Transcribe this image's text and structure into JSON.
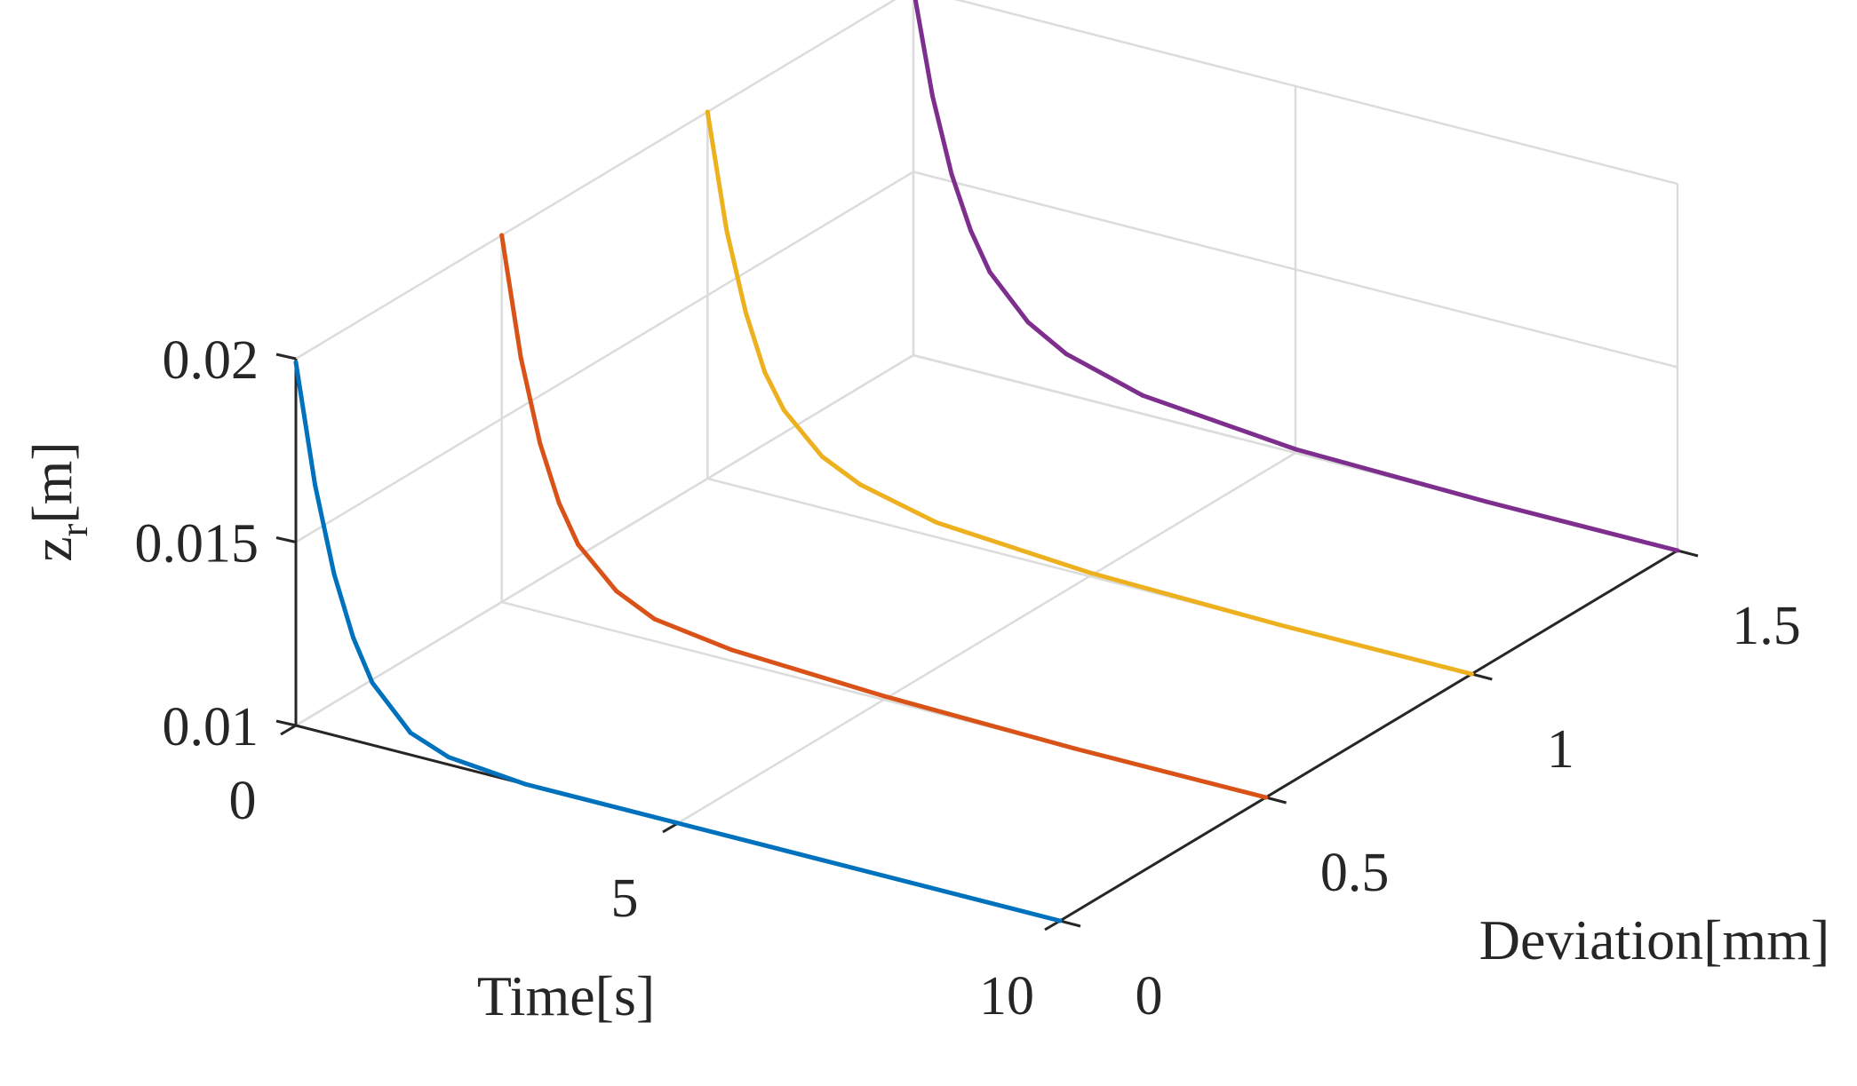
{
  "chart_data": {
    "type": "line",
    "view": "3d-waterfall",
    "xlabel": "Time[s]",
    "ylabel": "Deviation[mm]",
    "zlabel": "z",
    "zlabel_subscript": "r",
    "zlabel_unit": "[m]",
    "xlim": [
      0,
      10
    ],
    "ylim": [
      0,
      1.5
    ],
    "zlim": [
      0.01,
      0.02
    ],
    "x_ticks": [
      "0",
      "5",
      "10"
    ],
    "y_ticks": [
      "0",
      "0.5",
      "1",
      "1.5"
    ],
    "z_ticks": [
      "0.01",
      "0.015",
      "0.02"
    ],
    "grid": true,
    "colors": [
      "#0072BD",
      "#D95319",
      "#EDB120",
      "#7E2F8E"
    ],
    "series": [
      {
        "deviation": 0.0,
        "color": "#0072BD",
        "x": [
          0,
          0.25,
          0.5,
          0.75,
          1.0,
          1.5,
          2.0,
          3.0,
          5.0,
          7.5,
          10.0
        ],
        "z": [
          0.0199,
          0.0167,
          0.0144,
          0.0128,
          0.0117,
          0.0106,
          0.0102,
          0.01,
          0.01,
          0.01,
          0.01
        ]
      },
      {
        "deviation": 0.5,
        "color": "#D95319",
        "x": [
          0,
          0.25,
          0.5,
          0.75,
          1.0,
          1.5,
          2.0,
          3.0,
          5.0,
          7.5,
          10.0
        ],
        "z": [
          0.02,
          0.0168,
          0.0146,
          0.0131,
          0.0121,
          0.0111,
          0.0106,
          0.0103,
          0.0101,
          0.01,
          0.01
        ]
      },
      {
        "deviation": 1.0,
        "color": "#EDB120",
        "x": [
          0,
          0.25,
          0.5,
          0.75,
          1.0,
          1.5,
          2.0,
          3.0,
          5.0,
          7.5,
          10.0
        ],
        "z": [
          0.02,
          0.0169,
          0.0148,
          0.0133,
          0.0124,
          0.0114,
          0.0109,
          0.0104,
          0.0101,
          0.01,
          0.01
        ]
      },
      {
        "deviation": 1.5,
        "color": "#7E2F8E",
        "x": [
          0,
          0.25,
          0.5,
          0.75,
          1.0,
          1.5,
          2.0,
          3.0,
          5.0,
          7.5,
          10.0
        ],
        "z": [
          0.02,
          0.0172,
          0.0152,
          0.0138,
          0.0128,
          0.0117,
          0.0111,
          0.0105,
          0.0101,
          0.01,
          0.01
        ]
      }
    ]
  }
}
